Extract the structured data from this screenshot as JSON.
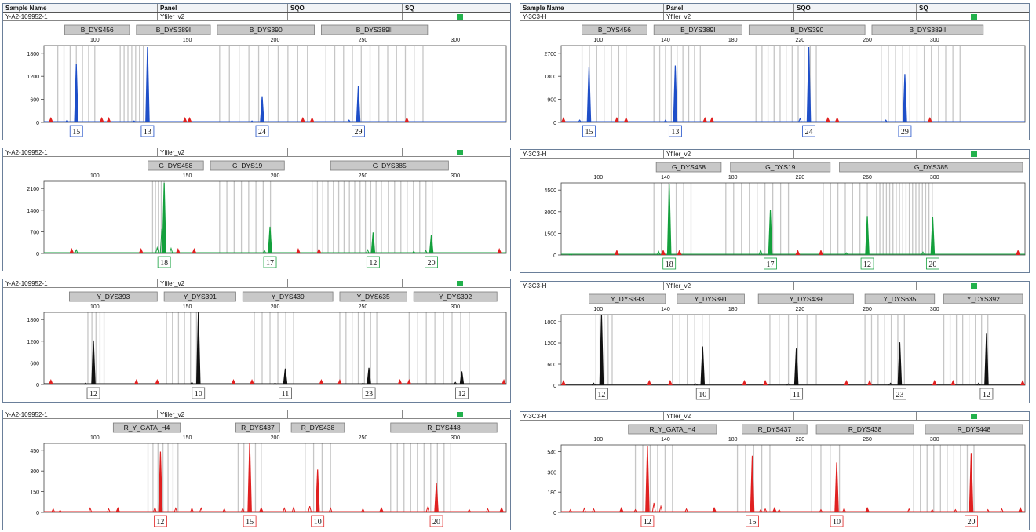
{
  "header_columns": [
    "Sample Name",
    "Panel",
    "SQO",
    "SQ"
  ],
  "colors": {
    "blue": "#1f4fc8",
    "green": "#14a03c",
    "black": "#111111",
    "red": "#e02020",
    "size_standard_marker": "#e02020",
    "qc_flag": "#22b14c"
  },
  "samples": [
    {
      "name": "Y-A2-109952-1",
      "panel": "Yfiler_v2",
      "dyes": [
        {
          "dye": "blue",
          "x_ticks": [
            "100",
            "150",
            "200",
            "250",
            "300"
          ],
          "y_ticks": [
            "0",
            "600",
            "1200",
            "1800"
          ],
          "markers": [
            "B_DYS456",
            "B_DYS389I",
            "B_DYS390",
            "B_DYS389II"
          ],
          "alleles": [
            "15",
            "13",
            "24",
            "29"
          ]
        },
        {
          "dye": "green",
          "x_ticks": [
            "100",
            "150",
            "200",
            "250",
            "300"
          ],
          "y_ticks": [
            "0",
            "700",
            "1400",
            "2100"
          ],
          "markers": [
            "G_DYS458",
            "G_DYS19",
            "G_DYS385"
          ],
          "alleles": [
            "18",
            "17",
            "12",
            "20"
          ]
        },
        {
          "dye": "black",
          "x_ticks": [
            "100",
            "150",
            "200",
            "250",
            "300"
          ],
          "y_ticks": [
            "0",
            "600",
            "1200",
            "1800"
          ],
          "markers": [
            "Y_DYS393",
            "Y_DYS391",
            "Y_DYS439",
            "Y_DYS635",
            "Y_DYS392"
          ],
          "alleles": [
            "12",
            "10",
            "11",
            "23",
            "12"
          ]
        },
        {
          "dye": "red",
          "x_ticks": [
            "100",
            "150",
            "200",
            "250",
            "300"
          ],
          "y_ticks": [
            "0",
            "150",
            "300",
            "450"
          ],
          "markers": [
            "R_Y_GATA_H4",
            "R_DYS437",
            "R_DYS438",
            "R_DYS448"
          ],
          "alleles": [
            "12",
            "15",
            "10",
            "20"
          ]
        }
      ]
    },
    {
      "name": "Y-3C3-H",
      "panel": "Yfiler_v2",
      "dyes": [
        {
          "dye": "blue",
          "x_ticks": [
            "100",
            "140",
            "180",
            "220",
            "260",
            "300"
          ],
          "y_ticks": [
            "0",
            "900",
            "1800",
            "2700"
          ],
          "markers": [
            "B_DYS456",
            "B_DYS389I",
            "B_DYS390",
            "B_DYS389II"
          ],
          "alleles": [
            "15",
            "13",
            "24",
            "29"
          ]
        },
        {
          "dye": "green",
          "x_ticks": [
            "100",
            "140",
            "180",
            "220",
            "260",
            "300"
          ],
          "y_ticks": [
            "0",
            "1500",
            "3000",
            "4500"
          ],
          "markers": [
            "G_DYS458",
            "G_DYS19",
            "G_DYS385"
          ],
          "alleles": [
            "18",
            "17",
            "12",
            "20"
          ]
        },
        {
          "dye": "black",
          "x_ticks": [
            "100",
            "140",
            "180",
            "220",
            "260",
            "300"
          ],
          "y_ticks": [
            "0",
            "600",
            "1200",
            "1800"
          ],
          "markers": [
            "Y_DYS393",
            "Y_DYS391",
            "Y_DYS439",
            "Y_DYS635",
            "Y_DYS392"
          ],
          "alleles": [
            "12",
            "10",
            "11",
            "23",
            "12"
          ]
        },
        {
          "dye": "red",
          "x_ticks": [
            "100",
            "140",
            "180",
            "220",
            "260",
            "300"
          ],
          "y_ticks": [
            "0",
            "180",
            "360",
            "540"
          ],
          "markers": [
            "R_Y_GATA_H4",
            "R_DYS437",
            "R_DYS438",
            "R_DYS448"
          ],
          "alleles": [
            "12",
            "15",
            "10",
            "20"
          ]
        }
      ]
    }
  ]
}
